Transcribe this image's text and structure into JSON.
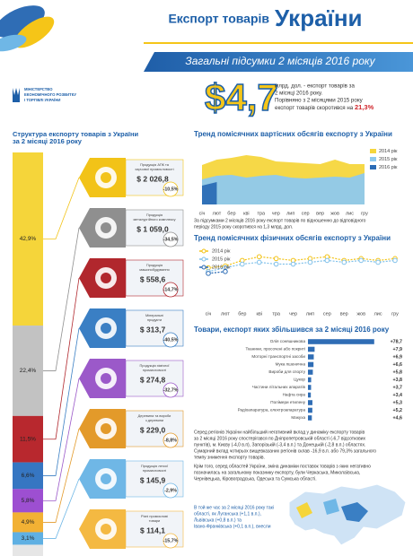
{
  "header": {
    "title": "Експорт товарів",
    "title_country": "України",
    "banner": "Загальні підсумки 2 місяців 2016 року",
    "ministry": [
      "МІНІСТЕРСТВО",
      "ЕКОНОМІЧНОГО РОЗВИТКУ",
      "І ТОРГІВЛІ УКРАЇНИ"
    ]
  },
  "summary": {
    "amount": "$4,7",
    "lines": [
      "млрд. дол. - експорт товарів за",
      "2 місяці 2016 року.",
      "Порівняно з 2 місяцями 2015 року",
      "експорт товарів скоротився на "
    ],
    "decline": "21,3%"
  },
  "categories": [
    {
      "name": [
        "Продукція АПК та",
        "харчової промисловості"
      ],
      "value": "$ 2 026,8",
      "change": "-10,5%",
      "color": "#f2c318"
    },
    {
      "name": [
        "Продукція",
        "металургійного комплексу"
      ],
      "value": "$ 1 059,0",
      "change": "-34,5%",
      "color": "#8f8f8f"
    },
    {
      "name": [
        "Продукція",
        "машинобудування"
      ],
      "value": "$ 558,6",
      "change": "-14,7%",
      "color": "#b1272d"
    },
    {
      "name": [
        "Мінеральні",
        "продукти"
      ],
      "value": "$ 313,7",
      "change": "-40,5%",
      "color": "#3a7fc4"
    },
    {
      "name": [
        "Продукція хімічної",
        "промисловості"
      ],
      "value": "$ 274,8",
      "change": "-32,7%",
      "color": "#9b59c9"
    },
    {
      "name": [
        "Деревина та вироби",
        "з деревини"
      ],
      "value": "$ 229,0",
      "change": "-8,8%",
      "color": "#e39a2a"
    },
    {
      "name": [
        "Продукція легкої",
        "промисловості"
      ],
      "value": "$ 145,9",
      "change": "-2,9%",
      "color": "#6fb7e6"
    },
    {
      "name": [
        "Різні промислові",
        "товари"
      ],
      "value": "$ 114,1",
      "change": "-15,7%",
      "color": "#f4b942"
    }
  ],
  "area_note": [
    "За підсумками 2 місяців 2016 року експорт товарів по відношенню до відповідного",
    "періоду 2015 року скоротився на 1,3 млрд. дол."
  ],
  "paragraphs": [
    [
      "Серед регіонів України найбільший негативний вклад у динаміку експорту товарів",
      "за 2 місяці 2016 року спостерігався по Дніпропетровській області (-6,7 відсоткових",
      "пунктів), м. Києву (-4,0 в.п), Запорізькій (-3,4 в.п.) та Донецькій (-2,8 в.п.) областях.",
      "Сумарний вклад чотирьох вищевказаних регіонів склав -16,9 в.п. або 79,3% загального",
      "темпу зниження експорту товарів."
    ],
    [
      "Крім того, серед областей України, зміна динаміки поставок товарів з яких негативно",
      "позначилась на загальному показнику експорту, були Черкаська, Миколаївська,",
      "Чернівецька, Кіровоградська, Одеська та Сумська області."
    ]
  ],
  "footnote": [
    "В той же час за 2 місяці 2016 року такі",
    "області, як Луганська (+1,1 в.п.),",
    "Львівська (+0,8 в.п.) та",
    "Івано-Франківська (+0,1 в.п.), внесли"
  ],
  "chart_data": [
    {
      "type": "stacked_bar",
      "title": [
        "Структура експорту товарів з України",
        "за 2 місяці 2016 року"
      ],
      "values": [
        42.9,
        22.4,
        11.5,
        6.6,
        5.8,
        4.9,
        3.1
      ],
      "value_labels": [
        "42,9%",
        "22,4%",
        "11,5%",
        "6,6%",
        "5,8%",
        "4,9%",
        "3,1%"
      ],
      "colors": [
        "#f5d53a",
        "#c2c2c2",
        "#b8282e",
        "#3676c2",
        "#9d4fd1",
        "#f2b134",
        "#5fb0e3"
      ],
      "ylim": [
        0,
        100
      ]
    },
    {
      "type": "area",
      "title": "Тренд помісячних вартісних обсягів експорту з України",
      "categories": [
        "січ",
        "лют",
        "бер",
        "кві",
        "тра",
        "чер",
        "лип",
        "сер",
        "вер",
        "жов",
        "лис",
        "гру"
      ],
      "series": [
        {
          "name": "2014 рік",
          "color": "#f5d63d",
          "values": [
            4.4,
            5.0,
            5.2,
            5.5,
            5.3,
            4.8,
            4.7,
            4.6,
            4.5,
            5.0,
            4.5,
            4.5
          ]
        },
        {
          "name": "2015 рік",
          "color": "#8ec9ee",
          "values": [
            2.8,
            3.2,
            3.3,
            3.0,
            3.2,
            3.3,
            3.0,
            2.9,
            3.0,
            3.1,
            3.0,
            3.5
          ]
        },
        {
          "name": "2016 рік",
          "color": "#2a6bb5",
          "values": [
            2.1,
            2.5,
            null,
            null,
            null,
            null,
            null,
            null,
            null,
            null,
            null,
            null
          ]
        }
      ],
      "ylim": [
        0,
        6
      ]
    },
    {
      "type": "line",
      "title": "Тренд помісячних фізичних обсягів експорту з України",
      "categories": [
        "січ",
        "лют",
        "бер",
        "кві",
        "тра",
        "чер",
        "лип",
        "сер",
        "вер",
        "жов",
        "лис",
        "гру"
      ],
      "series": [
        {
          "name": "2014 рік",
          "color": "#f2c318",
          "values": [
            10,
            10.5,
            12,
            13,
            12.5,
            12,
            12.5,
            13,
            12,
            12.5,
            12,
            12.5
          ]
        },
        {
          "name": "2015 рік",
          "color": "#7fc0ea",
          "values": [
            9,
            10,
            11,
            11.5,
            11,
            11,
            11.5,
            12,
            11.5,
            12,
            11.5,
            12
          ]
        },
        {
          "name": "2016 рік",
          "color": "#2a6bb5",
          "values": [
            8.5,
            9,
            null,
            null,
            null,
            null,
            null,
            null,
            null,
            null,
            null,
            null
          ]
        }
      ],
      "ylim": [
        0,
        15
      ]
    },
    {
      "type": "hbar",
      "title": "Товари, експорт яких збільшився за 2 місяці 2016 року",
      "categories": [
        "Олія соняшникова",
        "Тканини, просочені або покриті",
        "Моторні транспортні засоби",
        "Мука пшенична",
        "Вироби для спорту",
        "Цукор",
        "Частини літальних апаратів",
        "Нафта сира",
        "Полімери етилену",
        "Радіоапаратура, електроапаратура",
        "Макуха"
      ],
      "values": [
        78.7,
        7.9,
        6.9,
        6.6,
        5.8,
        3.8,
        3.7,
        3.4,
        5.3,
        5.2,
        4.6
      ],
      "value_labels": [
        "+78,7",
        "+7,9",
        "+6,9",
        "+6,6",
        "+5,8",
        "+3,8",
        "+3,7",
        "+3,4",
        "+5,3",
        "+5,2",
        "+4,6"
      ],
      "color": "#2f6db5",
      "xlim": [
        0,
        80
      ]
    }
  ]
}
